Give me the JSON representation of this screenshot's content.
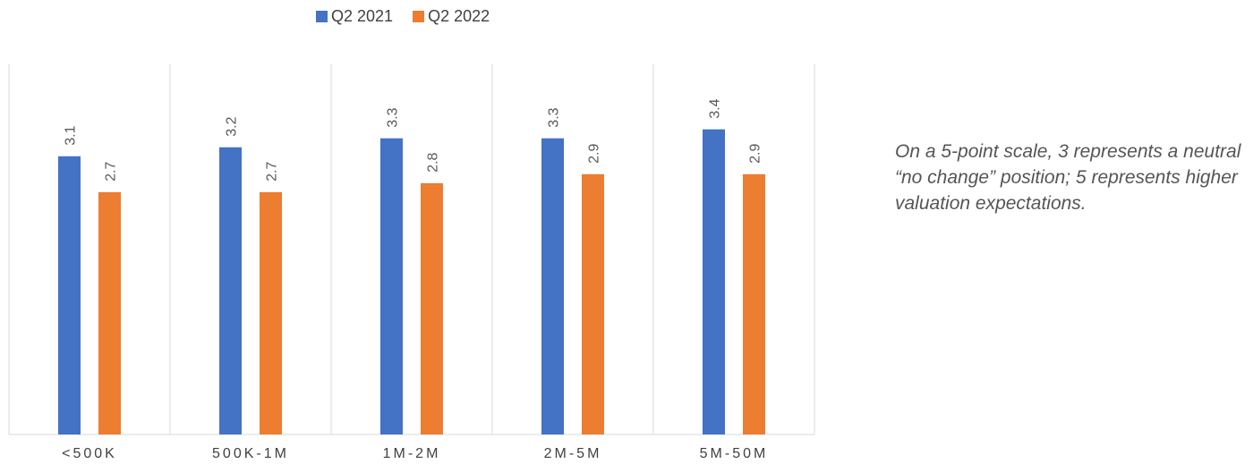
{
  "chart_data": {
    "type": "bar",
    "categories": [
      "<500K",
      "500K-1M",
      "1M-2M",
      "2M-5M",
      "5M-50M"
    ],
    "series": [
      {
        "name": "Q2 2021",
        "values": [
          3.1,
          3.2,
          3.3,
          3.3,
          3.4
        ],
        "color": "#4472C4"
      },
      {
        "name": "Q2 2022",
        "values": [
          2.7,
          2.7,
          2.8,
          2.9,
          2.9
        ],
        "color": "#ED7D31"
      }
    ],
    "ylim": [
      0,
      4
    ],
    "grid": "vertical category separators",
    "legend_position": "top",
    "data_labels": true
  },
  "note": "On a 5-point scale, 3 represents a neutral “no change” position; 5 represents higher valuation expectations."
}
